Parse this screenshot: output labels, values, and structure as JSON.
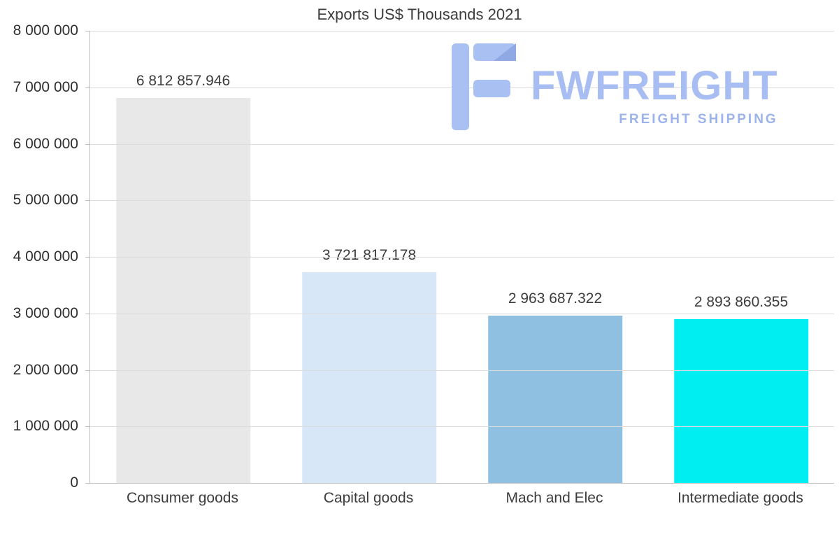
{
  "title": "Exports US$ Thousands 2021",
  "logo": {
    "name": "FWFREIGHT",
    "tagline": "FREIGHT SHIPPING",
    "name_color": "#a8bdf2",
    "tagline_color": "#9cb3ec",
    "mark_color": "#a9c0f2",
    "mark_accent_color": "#8fa9e4"
  },
  "chart_data": {
    "type": "bar",
    "title": "Exports US$ Thousands 2021",
    "categories": [
      "Consumer goods",
      "Capital goods",
      "Mach and Elec",
      "Intermediate goods"
    ],
    "values": [
      6812857.946,
      3721817.178,
      2963687.322,
      2893860.355
    ],
    "value_labels": [
      "6 812 857.946",
      "3 721 817.178",
      "2 963 687.322",
      "2 893 860.355"
    ],
    "bar_colors": [
      "#e8e8e8",
      "#d8e7f8",
      "#8fc0e2",
      "#00eef2"
    ],
    "ylim": [
      0,
      8000000
    ],
    "ytick_values": [
      0,
      1000000,
      2000000,
      3000000,
      4000000,
      5000000,
      6000000,
      7000000,
      8000000
    ],
    "ytick_labels": [
      "0",
      "1 000 000",
      "2 000 000",
      "3 000 000",
      "4 000 000",
      "5 000 000",
      "6 000 000",
      "7 000 000",
      "8 000 000"
    ],
    "grid": true,
    "legend": "none",
    "xlabel": "",
    "ylabel": ""
  }
}
